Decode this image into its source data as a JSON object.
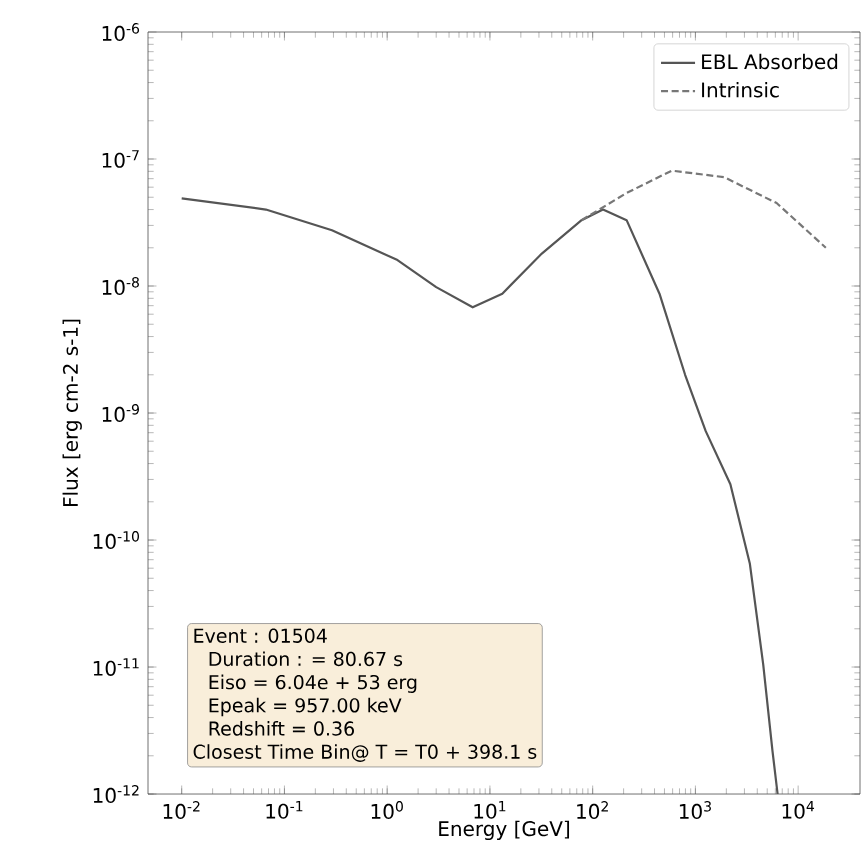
{
  "chart_data": {
    "type": "line",
    "xlabel": "Energy [GeV]",
    "ylabel": "Flux [erg cm-2 s-1]",
    "log": "xy",
    "legend": "top right",
    "xlim": [
      0.0047,
      40000
    ],
    "ylim": [
      1e-12,
      1e-06
    ],
    "xticks": [
      {
        "value": 0.01,
        "label": "10$^{-2}$"
      },
      {
        "value": 0.1,
        "label": "10$^{-1}$"
      },
      {
        "value": 1,
        "label": "10$^{0}$"
      },
      {
        "value": 10,
        "label": "10$^{1}$"
      },
      {
        "value": 100,
        "label": "10$^{2}$"
      },
      {
        "value": 1000,
        "label": "10$^{3}$"
      },
      {
        "value": 10000,
        "label": "10$^{4}$"
      }
    ],
    "yticks": [
      {
        "value": 1e-12,
        "label": "10$^{-12}$"
      },
      {
        "value": 1e-11,
        "label": "10$^{-11}$"
      },
      {
        "value": 1e-10,
        "label": "10$^{-10}$"
      },
      {
        "value": 1e-09,
        "label": "10$^{-9}$"
      },
      {
        "value": 1e-08,
        "label": "10$^{-8}$"
      },
      {
        "value": 1e-07,
        "label": "10$^{-7}$"
      },
      {
        "value": 1e-06,
        "label": "10$^{-6}$"
      }
    ],
    "series": [
      {
        "name": "EBL Absorbed",
        "color": "#555555",
        "line_style": "solid",
        "x": [
          0.01,
          0.066,
          0.29,
          1.26,
          3.0,
          6.8,
          13.2,
          32,
          78,
          126,
          214,
          447,
          794,
          1260,
          2190,
          3390,
          4570,
          5620,
          6310
        ],
        "values": [
          4.9e-08,
          4e-08,
          2.75e-08,
          1.6e-08,
          9.8e-09,
          6.8e-09,
          8.7e-09,
          1.8e-08,
          3.3e-08,
          4e-08,
          3.3e-08,
          8.7e-09,
          2e-09,
          7.2e-10,
          2.75e-10,
          6.5e-11,
          1.05e-11,
          2.2e-12,
          1e-12
        ]
      },
      {
        "name": "Intrinsic",
        "color": "#777777",
        "line_style": "dashed",
        "x": [
          78,
          214,
          589,
          1900,
          6170,
          18600
        ],
        "values": [
          3.3e-08,
          5.4e-08,
          8.1e-08,
          7.2e-08,
          4.5e-08,
          2e-08
        ]
      }
    ],
    "annotations": [
      "Event : 01504",
      "Duration : = 80.67 s",
      "Eiso = 6.04e + 53 erg",
      "Epeak = 957.00 keV",
      "Redshift = 0.36",
      "Closest Time Bin@ T = T0 +  398.1 s"
    ]
  }
}
